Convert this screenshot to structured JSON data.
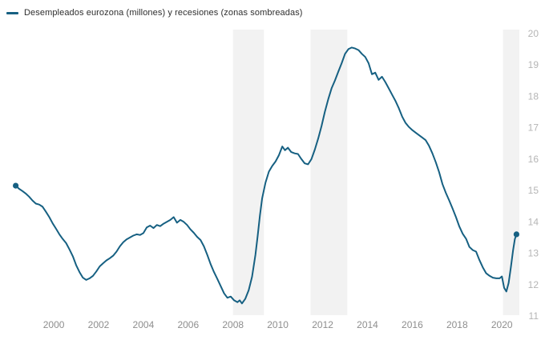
{
  "legend": {
    "label": "Desempleados eurozona (millones) y recesiones (zonas sombreadas)"
  },
  "colors": {
    "line": "#166082",
    "recession_band": "#f2f2f2",
    "x_tick_text": "#8e8e8e",
    "y_tick_text": "#b5b5b5",
    "legend_text": "#2e2e2e",
    "background": "#ffffff"
  },
  "chart_data": {
    "type": "line",
    "title": "Desempleados eurozona (millones) y recesiones (zonas sombreadas)",
    "ylabel": "",
    "xlabel": "",
    "y_axis_position": "right",
    "grid": false,
    "endpoint_markers": true,
    "xlim": [
      1997.6,
      2020.78
    ],
    "ylim": [
      11,
      20
    ],
    "x_ticks": [
      "2000",
      "2002",
      "2004",
      "2006",
      "2008",
      "2010",
      "2012",
      "2014",
      "2016",
      "2018",
      "2020"
    ],
    "x_tick_years": [
      2000,
      2002,
      2004,
      2006,
      2008,
      2010,
      2012,
      2014,
      2016,
      2018,
      2020
    ],
    "y_ticks": [
      11,
      12,
      13,
      14,
      15,
      16,
      17,
      18,
      19,
      20
    ],
    "recession_bands": [
      {
        "name": "recesion-2008-2009",
        "start": 2008.0,
        "end": 2009.38
      },
      {
        "name": "recesion-2011-2013",
        "start": 2011.46,
        "end": 2013.1
      },
      {
        "name": "recesion-2020",
        "start": 2020.05,
        "end": 2020.78
      }
    ],
    "series": [
      {
        "name": "Desempleados eurozona (millones)",
        "points": [
          [
            1998.3,
            15.15
          ],
          [
            1998.45,
            15.05
          ],
          [
            1998.6,
            14.98
          ],
          [
            1998.75,
            14.9
          ],
          [
            1998.9,
            14.8
          ],
          [
            1999.05,
            14.68
          ],
          [
            1999.2,
            14.58
          ],
          [
            1999.35,
            14.55
          ],
          [
            1999.5,
            14.48
          ],
          [
            1999.65,
            14.32
          ],
          [
            1999.8,
            14.15
          ],
          [
            1999.95,
            13.95
          ],
          [
            2000.1,
            13.78
          ],
          [
            2000.25,
            13.6
          ],
          [
            2000.4,
            13.45
          ],
          [
            2000.55,
            13.32
          ],
          [
            2000.7,
            13.12
          ],
          [
            2000.85,
            12.9
          ],
          [
            2001.0,
            12.62
          ],
          [
            2001.15,
            12.4
          ],
          [
            2001.3,
            12.22
          ],
          [
            2001.45,
            12.15
          ],
          [
            2001.6,
            12.2
          ],
          [
            2001.75,
            12.28
          ],
          [
            2001.9,
            12.42
          ],
          [
            2002.05,
            12.58
          ],
          [
            2002.2,
            12.68
          ],
          [
            2002.35,
            12.77
          ],
          [
            2002.5,
            12.84
          ],
          [
            2002.65,
            12.92
          ],
          [
            2002.8,
            13.05
          ],
          [
            2002.95,
            13.22
          ],
          [
            2003.1,
            13.35
          ],
          [
            2003.25,
            13.44
          ],
          [
            2003.4,
            13.5
          ],
          [
            2003.55,
            13.56
          ],
          [
            2003.7,
            13.6
          ],
          [
            2003.85,
            13.58
          ],
          [
            2004.0,
            13.64
          ],
          [
            2004.15,
            13.82
          ],
          [
            2004.3,
            13.88
          ],
          [
            2004.45,
            13.8
          ],
          [
            2004.6,
            13.9
          ],
          [
            2004.75,
            13.86
          ],
          [
            2004.9,
            13.94
          ],
          [
            2005.05,
            14.0
          ],
          [
            2005.2,
            14.06
          ],
          [
            2005.35,
            14.15
          ],
          [
            2005.5,
            13.97
          ],
          [
            2005.65,
            14.06
          ],
          [
            2005.8,
            14.0
          ],
          [
            2005.95,
            13.9
          ],
          [
            2006.1,
            13.76
          ],
          [
            2006.25,
            13.65
          ],
          [
            2006.4,
            13.52
          ],
          [
            2006.55,
            13.42
          ],
          [
            2006.7,
            13.22
          ],
          [
            2006.85,
            12.95
          ],
          [
            2007.0,
            12.65
          ],
          [
            2007.15,
            12.4
          ],
          [
            2007.3,
            12.18
          ],
          [
            2007.45,
            11.95
          ],
          [
            2007.6,
            11.72
          ],
          [
            2007.75,
            11.58
          ],
          [
            2007.9,
            11.62
          ],
          [
            2008.05,
            11.5
          ],
          [
            2008.2,
            11.44
          ],
          [
            2008.3,
            11.5
          ],
          [
            2008.4,
            11.4
          ],
          [
            2008.55,
            11.55
          ],
          [
            2008.7,
            11.82
          ],
          [
            2008.85,
            12.25
          ],
          [
            2009.0,
            12.95
          ],
          [
            2009.1,
            13.55
          ],
          [
            2009.2,
            14.2
          ],
          [
            2009.3,
            14.75
          ],
          [
            2009.45,
            15.25
          ],
          [
            2009.6,
            15.6
          ],
          [
            2009.75,
            15.78
          ],
          [
            2009.9,
            15.92
          ],
          [
            2010.05,
            16.12
          ],
          [
            2010.2,
            16.4
          ],
          [
            2010.32,
            16.28
          ],
          [
            2010.45,
            16.36
          ],
          [
            2010.6,
            16.22
          ],
          [
            2010.75,
            16.18
          ],
          [
            2010.9,
            16.16
          ],
          [
            2011.05,
            16.0
          ],
          [
            2011.2,
            15.86
          ],
          [
            2011.35,
            15.83
          ],
          [
            2011.5,
            16.0
          ],
          [
            2011.65,
            16.3
          ],
          [
            2011.8,
            16.65
          ],
          [
            2011.95,
            17.05
          ],
          [
            2012.1,
            17.5
          ],
          [
            2012.25,
            17.9
          ],
          [
            2012.4,
            18.25
          ],
          [
            2012.55,
            18.5
          ],
          [
            2012.7,
            18.78
          ],
          [
            2012.85,
            19.05
          ],
          [
            2013.0,
            19.35
          ],
          [
            2013.15,
            19.5
          ],
          [
            2013.3,
            19.55
          ],
          [
            2013.45,
            19.52
          ],
          [
            2013.6,
            19.47
          ],
          [
            2013.75,
            19.35
          ],
          [
            2013.9,
            19.25
          ],
          [
            2014.05,
            19.05
          ],
          [
            2014.2,
            18.7
          ],
          [
            2014.35,
            18.75
          ],
          [
            2014.5,
            18.52
          ],
          [
            2014.65,
            18.62
          ],
          [
            2014.8,
            18.45
          ],
          [
            2014.95,
            18.25
          ],
          [
            2015.1,
            18.05
          ],
          [
            2015.25,
            17.85
          ],
          [
            2015.4,
            17.62
          ],
          [
            2015.55,
            17.35
          ],
          [
            2015.7,
            17.15
          ],
          [
            2015.85,
            17.02
          ],
          [
            2016.0,
            16.92
          ],
          [
            2016.15,
            16.84
          ],
          [
            2016.3,
            16.76
          ],
          [
            2016.45,
            16.68
          ],
          [
            2016.6,
            16.6
          ],
          [
            2016.75,
            16.42
          ],
          [
            2016.9,
            16.18
          ],
          [
            2017.05,
            15.9
          ],
          [
            2017.2,
            15.58
          ],
          [
            2017.35,
            15.2
          ],
          [
            2017.5,
            14.92
          ],
          [
            2017.65,
            14.68
          ],
          [
            2017.8,
            14.42
          ],
          [
            2017.95,
            14.15
          ],
          [
            2018.1,
            13.85
          ],
          [
            2018.25,
            13.62
          ],
          [
            2018.4,
            13.46
          ],
          [
            2018.55,
            13.2
          ],
          [
            2018.7,
            13.1
          ],
          [
            2018.85,
            13.05
          ],
          [
            2019.0,
            12.78
          ],
          [
            2019.15,
            12.55
          ],
          [
            2019.3,
            12.36
          ],
          [
            2019.45,
            12.28
          ],
          [
            2019.6,
            12.22
          ],
          [
            2019.75,
            12.2
          ],
          [
            2019.9,
            12.2
          ],
          [
            2020.0,
            12.26
          ],
          [
            2020.1,
            11.9
          ],
          [
            2020.2,
            11.78
          ],
          [
            2020.3,
            12.05
          ],
          [
            2020.4,
            12.55
          ],
          [
            2020.5,
            13.1
          ],
          [
            2020.58,
            13.45
          ],
          [
            2020.65,
            13.6
          ]
        ]
      }
    ]
  }
}
